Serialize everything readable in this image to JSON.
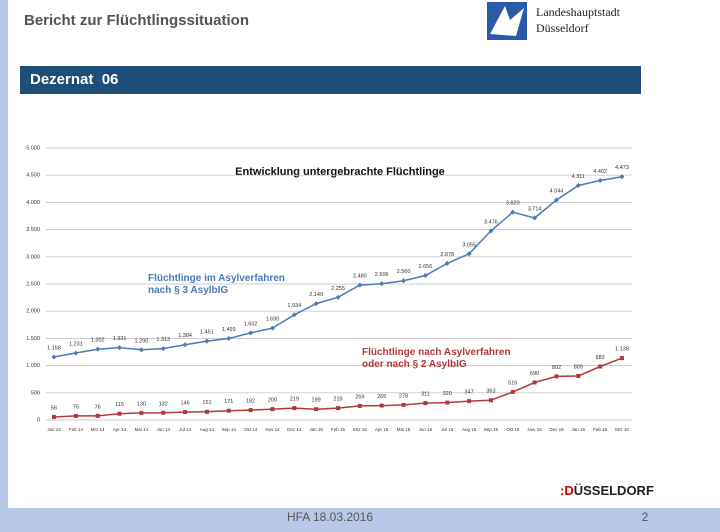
{
  "header": {
    "title": "Bericht zur Flüchtlingssituation",
    "logo_line1": "Landeshauptstadt",
    "logo_line2": "Düsseldorf"
  },
  "section": "Dezernat  06",
  "brand": {
    "prefix": ":D",
    "rest": "ÜSSELDORF"
  },
  "footer": {
    "date": "HFA 18.03.2016",
    "page": "2"
  },
  "chart_data": {
    "type": "line",
    "title": "Entwicklung untergebrachte Flüchtlinge",
    "categories": [
      "Jan 14",
      "Feb 14",
      "Mrz 14",
      "Apr 14",
      "Mai 14",
      "Jun 14",
      "Jul 14",
      "Aug 14",
      "Sep 14",
      "Okt 14",
      "Nov 14",
      "Dez 14",
      "Jan 15",
      "Feb 15",
      "Mrz 15",
      "Apr 15",
      "Mai 15",
      "Jun 15",
      "Jul 15",
      "Aug 15",
      "Sep 15",
      "Okt 15",
      "Nov 15",
      "Dez 15",
      "Jan 16",
      "Feb 16",
      "Mrz 16"
    ],
    "series": [
      {
        "name": "Flüchtlinge im Asylverfahren nach § 3 AsylbIG",
        "color": "#4a7ab8",
        "values": [
          1158,
          1231,
          1302,
          1331,
          1290,
          1313,
          1384,
          1451,
          1499,
          1602,
          1690,
          1934,
          2140,
          2255,
          2480,
          2506,
          2560,
          2656,
          2878,
          3055,
          3476,
          3820,
          3714,
          4044,
          4311,
          4402,
          4473
        ],
        "value_labels": [
          "1.158",
          "1.231",
          "1.302",
          "1.331",
          "1.290",
          "1.313",
          "1.384",
          "1.451",
          "1.499",
          "1.602",
          "1.690",
          "1.934",
          "2.140",
          "2.255",
          "2.480",
          "2.506",
          "2.560",
          "2.656",
          "2.878",
          "3.055",
          "3.476",
          "3.820",
          "3.714",
          "4.044",
          "4.311",
          "4.402",
          "4.473"
        ]
      },
      {
        "name": "Flüchtlinge nach Asylverfahren oder nach § 2 AsylbIG",
        "color": "#b03a3a",
        "values": [
          56,
          75,
          76,
          115,
          130,
          132,
          146,
          151,
          171,
          182,
          200,
          219,
          199,
          219,
          259,
          265,
          278,
          311,
          320,
          347,
          363,
          516,
          690,
          802,
          809,
          983,
          1138
        ],
        "value_labels": [
          "56",
          "75",
          "76",
          "115",
          "130",
          "132",
          "146",
          "151",
          "171",
          "182",
          "200",
          "219",
          "199",
          "219",
          "259",
          "265",
          "278",
          "311",
          "320",
          "347",
          "363",
          "516",
          "690",
          "802",
          "809",
          "983",
          "1.138"
        ]
      }
    ],
    "ylim": [
      0,
      5000
    ],
    "yticks": [
      0,
      500,
      {
        "value": 1000,
        "label": "1.000"
      },
      {
        "value": 1500,
        "label": "1.500"
      },
      {
        "value": 2000,
        "label": "2.000"
      },
      {
        "value": 2500,
        "label": "2.500"
      },
      {
        "value": 3000,
        "label": "3.000"
      },
      {
        "value": 3500,
        "label": "3.500"
      },
      {
        "value": 4000,
        "label": "4.000"
      },
      {
        "value": 4500,
        "label": "4.500"
      },
      {
        "value": 5000,
        "label": "5.000"
      }
    ],
    "grid": true
  }
}
